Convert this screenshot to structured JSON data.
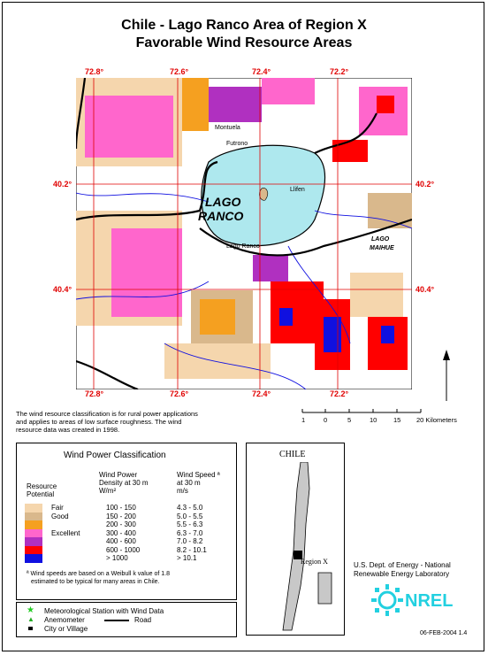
{
  "title_line1": "Chile - Lago Ranco Area of Region X",
  "title_line2": "Favorable Wind Resource Areas",
  "lon_labels": [
    "72.8°",
    "72.6°",
    "72.4°",
    "72.2°"
  ],
  "lat_labels": [
    "40.2°",
    "40.4°"
  ],
  "places": {
    "montuela": "Montuela",
    "futrono": "Futrono",
    "llifen": "Llifen",
    "lago_ranco_town": "Lago Ranco",
    "lake1": "LAGO",
    "lake2": "RANCO",
    "maihue1": "LAGO",
    "maihue2": "MAIHUE"
  },
  "note": [
    "The wind resource classification is for rural power applications",
    "and applies to areas of low surface roughness.  The wind",
    "resource data was created in 1998."
  ],
  "scale": {
    "ticks": [
      "1",
      "0",
      "5",
      "10",
      "15",
      "20 Kilometers"
    ]
  },
  "legend": {
    "title": "Wind Power Classification",
    "col1_h1": "Resource",
    "col1_h2": "Potential",
    "col2_h1": "Wind Power",
    "col2_h2": "Density at 30 m",
    "col2_h3": "W/m²",
    "col3_h1": "Wind Speed ª",
    "col3_h2": "at 30 m",
    "col3_h3": "m/s",
    "rows": [
      {
        "potential": "Fair",
        "density": "100 - 150",
        "speed": "4.3 - 5.0",
        "color": "#f5d6ad"
      },
      {
        "potential": "Good",
        "density": "150 - 200",
        "speed": "5.0 - 5.5",
        "color": "#d9b88c"
      },
      {
        "potential": "",
        "density": "200 - 300",
        "speed": "5.5 - 6.3",
        "color": "#f5a020"
      },
      {
        "potential": "Excellent",
        "density": "300 - 400",
        "speed": "6.3 - 7.0",
        "color": "#ff66cc"
      },
      {
        "potential": "",
        "density": "400 - 600",
        "speed": "7.0 - 8.2",
        "color": "#b030c0"
      },
      {
        "potential": "",
        "density": "600 - 1000",
        "speed": "8.2 - 10.1",
        "color": "#ff0000"
      },
      {
        "potential": "",
        "density": "> 1000",
        "speed": "> 10.1",
        "color": "#1010e0"
      }
    ],
    "footnote1": "ª Wind speeds are based on a Weibull k value of 1.8",
    "footnote2": "estimated to be typical for many areas in Chile."
  },
  "symbols": {
    "station": "Meteorological Station with Wind Data",
    "anemometer": "Anemometer",
    "road": "Road",
    "city": "City or Village"
  },
  "inset": {
    "title": "CHILE",
    "region": "Region X"
  },
  "credit1": "U.S. Dept. of Energy - National",
  "credit2": "Renewable Energy Laboratory",
  "nrel": "NREL",
  "date_code": "06-FEB-2004 1.4",
  "colors": {
    "lake": "#aee8ee",
    "grid": "#e00000",
    "nrel_cyan": "#22d0e0"
  }
}
